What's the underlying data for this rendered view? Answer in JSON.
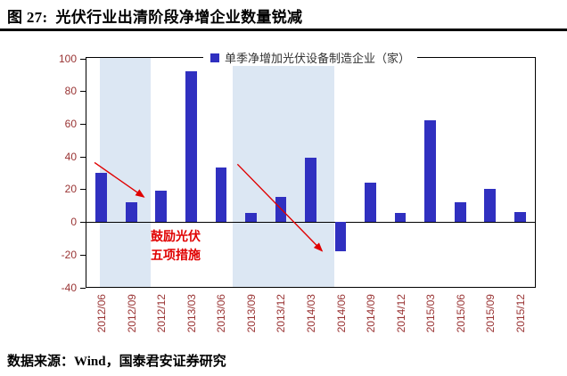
{
  "figure": {
    "label": "图 27:",
    "title": "图 27:  光伏行业出清阶段净增企业数量锐减",
    "source": "数据来源：Wind，国泰君安证券研究"
  },
  "chart_data": {
    "type": "bar",
    "title": "光伏行业出清阶段净增企业数量锐减",
    "legend": "单季净增加光伏设备制造企业（家）",
    "legend_position": "top",
    "xlabel": "",
    "ylabel": "",
    "categories": [
      "2012/06",
      "2012/09",
      "2012/12",
      "2013/03",
      "2013/06",
      "2013/09",
      "2013/12",
      "2014/03",
      "2014/06",
      "2014/09",
      "2014/12",
      "2015/03",
      "2015/06",
      "2015/09",
      "2015/12"
    ],
    "values": [
      30,
      12,
      19,
      92,
      33,
      5,
      15,
      39,
      -18,
      24,
      5,
      62,
      12,
      20,
      6
    ],
    "ylim": [
      -40,
      100
    ],
    "yticks": [
      100,
      80,
      60,
      40,
      20,
      0,
      -20,
      -40
    ],
    "grid": false,
    "colors": {
      "bar": "#3030c0",
      "band": "#dce7f3",
      "axis_labels": "#993333",
      "annotation": "#e00000",
      "legend_text": "#333333"
    },
    "bands": [
      {
        "from": 0.45,
        "to": 2.15
      },
      {
        "from": 4.9,
        "to": 8.3
      }
    ],
    "arrows": [
      {
        "x1": 0.27,
        "y1": 36,
        "x2": 1.92,
        "y2": 15
      },
      {
        "x1": 5.05,
        "y1": 35,
        "x2": 7.88,
        "y2": -18
      }
    ],
    "annotation": {
      "line1": "鼓励光伏",
      "line2": "五项措施"
    }
  }
}
